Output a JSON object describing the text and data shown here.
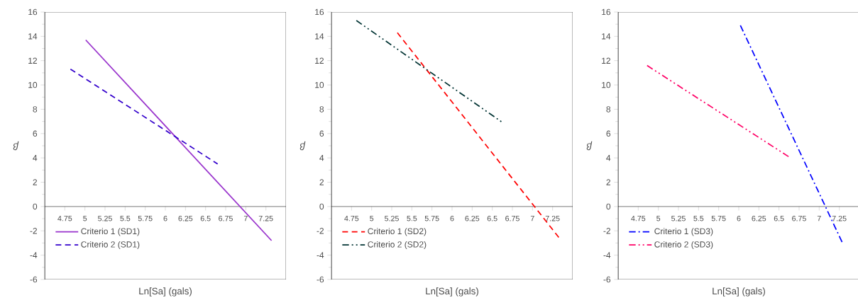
{
  "chart_data": [
    {
      "type": "line",
      "xlabel": "Ln[Sa] (gals)",
      "ylabel": "β",
      "xlim": [
        4.5,
        7.5
      ],
      "ylim": [
        -6,
        16
      ],
      "xticks": [
        4.75,
        5,
        5.25,
        5.5,
        5.75,
        6,
        6.25,
        6.5,
        6.75,
        7,
        7.25
      ],
      "yticks": [
        -6,
        -4,
        -2,
        0,
        2,
        4,
        6,
        8,
        10,
        12,
        14,
        16
      ],
      "legend": "bottom left",
      "series": [
        {
          "name": "Criterio 1 (SD1)",
          "color": "#9933cc",
          "line_style": "solid",
          "x": [
            5.01,
            7.32
          ],
          "values": [
            13.7,
            -2.8
          ]
        },
        {
          "name": "Criterio 2 (SD1)",
          "color": "#3300cc",
          "line_style": "dashed",
          "x": [
            4.82,
            6.65
          ],
          "values": [
            11.3,
            3.5
          ]
        }
      ]
    },
    {
      "type": "line",
      "xlabel": "Ln[Sa] (gals)",
      "ylabel": "β",
      "xlim": [
        4.5,
        7.5
      ],
      "ylim": [
        -6,
        16
      ],
      "xticks": [
        4.75,
        5,
        5.25,
        5.5,
        5.75,
        6,
        6.25,
        6.5,
        6.75,
        7,
        7.25
      ],
      "yticks": [
        -6,
        -4,
        -2,
        0,
        2,
        4,
        6,
        8,
        10,
        12,
        14,
        16
      ],
      "legend": "bottom left",
      "series": [
        {
          "name": "Criterio 1 (SD2)",
          "color": "#ff0000",
          "line_style": "dashed",
          "x": [
            5.32,
            7.34
          ],
          "values": [
            14.3,
            -2.65
          ]
        },
        {
          "name": "Criterio 2 (SD2)",
          "color": "#003333",
          "line_style": "dashdotdot",
          "x": [
            4.81,
            6.63
          ],
          "values": [
            15.3,
            6.9
          ]
        }
      ]
    },
    {
      "type": "line",
      "xlabel": "Ln[Sa] (gals)",
      "ylabel": "β",
      "xlim": [
        4.5,
        7.5
      ],
      "ylim": [
        -6,
        16
      ],
      "xticks": [
        4.75,
        5,
        5.25,
        5.5,
        5.75,
        6,
        6.25,
        6.5,
        6.75,
        7,
        7.25
      ],
      "yticks": [
        -6,
        -4,
        -2,
        0,
        2,
        4,
        6,
        8,
        10,
        12,
        14,
        16
      ],
      "legend": "bottom left",
      "series": [
        {
          "name": "Criterio 1 (SD3)",
          "color": "#0000ff",
          "line_style": "dashdot",
          "x": [
            6.02,
            7.29
          ],
          "values": [
            14.9,
            -3.0
          ]
        },
        {
          "name": "Criterio 2 (SD3)",
          "color": "#ff0066",
          "line_style": "dashdotdot",
          "x": [
            4.86,
            6.62
          ],
          "values": [
            11.6,
            4.1
          ]
        }
      ]
    }
  ]
}
